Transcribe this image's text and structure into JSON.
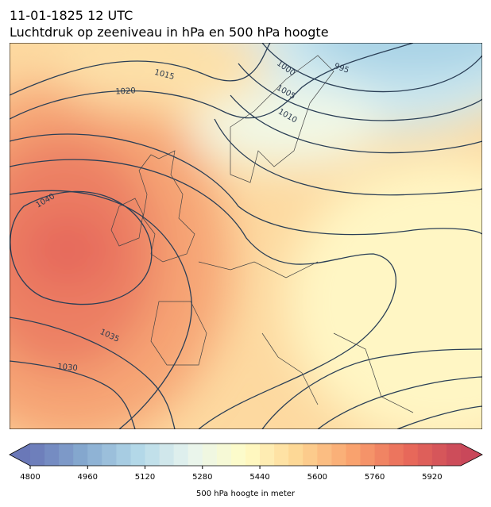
{
  "title": "11-01-1825 12 UTC",
  "subtitle": "Luchtdruk op zeeniveau in hPa en 500 hPa hoogte",
  "contour_labels": [
    1015,
    1020,
    1000,
    995,
    1005,
    1010,
    1040,
    1035,
    1030
  ],
  "colorbar": {
    "label": "500 hPa hoogte in meter",
    "lim": [
      4800,
      6000
    ],
    "ticks": [
      4800,
      4960,
      5120,
      5280,
      5440,
      5600,
      5760,
      5920
    ]
  }
}
